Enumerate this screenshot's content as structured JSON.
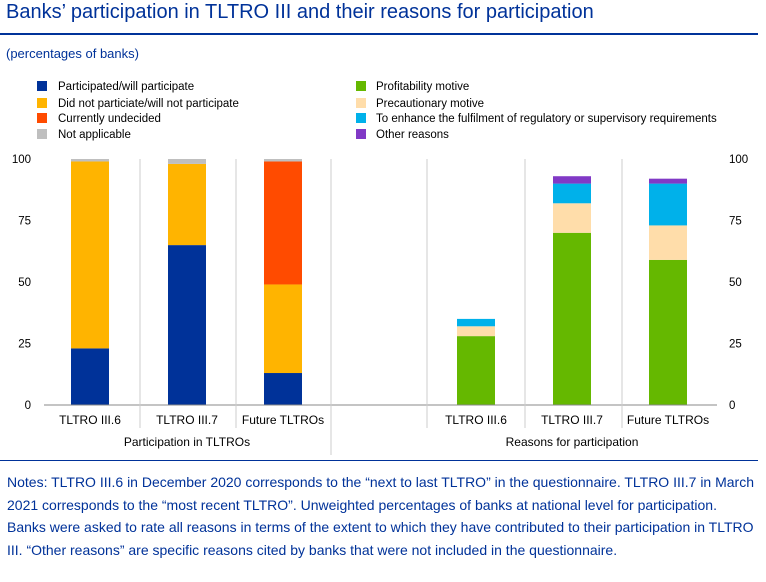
{
  "header": {
    "title": "Banks’ participation in TLTRO III and their reasons for participation",
    "subtitle": "(percentages of banks)"
  },
  "notes": "Notes: TLTRO III.6 in December 2020 corresponds to the “next to last TLTRO” in the questionnaire. TLTRO III.7 in March 2021 corresponds to the “most recent TLTRO”. Unweighted percentages of banks at national level for participation. Banks were asked to rate all reasons in terms of the extent to which they have contributed to their participation in TLTRO III. “Other reasons” are specific reasons cited by banks that were not included in the questionnaire.",
  "chart_data": {
    "type": "bar",
    "stacked": true,
    "ylim": [
      0,
      100
    ],
    "yticks": [
      0,
      25,
      50,
      75,
      100
    ],
    "grid": false,
    "legend_position": "top",
    "groups": [
      {
        "label": "Participation in TLTROs",
        "categories": [
          "TLTRO III.6",
          "TLTRO III.7",
          "Future TLTROs"
        ],
        "series": [
          {
            "name": "Participated/will participate",
            "color": "#003299",
            "values": [
              23,
              65,
              13
            ]
          },
          {
            "name": "Did not particiate/will not participate",
            "color": "#FFB400",
            "values": [
              76,
              33,
              36
            ]
          },
          {
            "name": "Currently undecided",
            "color": "#FF4B00",
            "values": [
              0,
              0,
              50
            ]
          },
          {
            "name": "Not applicable",
            "color": "#BFBFBF",
            "values": [
              1,
              2,
              1
            ]
          }
        ]
      },
      {
        "label": "Reasons for participation",
        "categories": [
          "TLTRO III.6",
          "TLTRO III.7",
          "Future TLTROs"
        ],
        "series": [
          {
            "name": "Profitability motive",
            "color": "#65B800",
            "values": [
              28,
              70,
              59
            ]
          },
          {
            "name": "Precautionary motive",
            "color": "#FFDDAA",
            "values": [
              4,
              12,
              14
            ]
          },
          {
            "name": "To enhance the fulfilment of regulatory or supervisory requirements",
            "color": "#00B1EA",
            "values": [
              3,
              8,
              17
            ]
          },
          {
            "name": "Other reasons",
            "color": "#8139C6",
            "values": [
              0,
              3,
              2
            ]
          }
        ]
      }
    ]
  }
}
